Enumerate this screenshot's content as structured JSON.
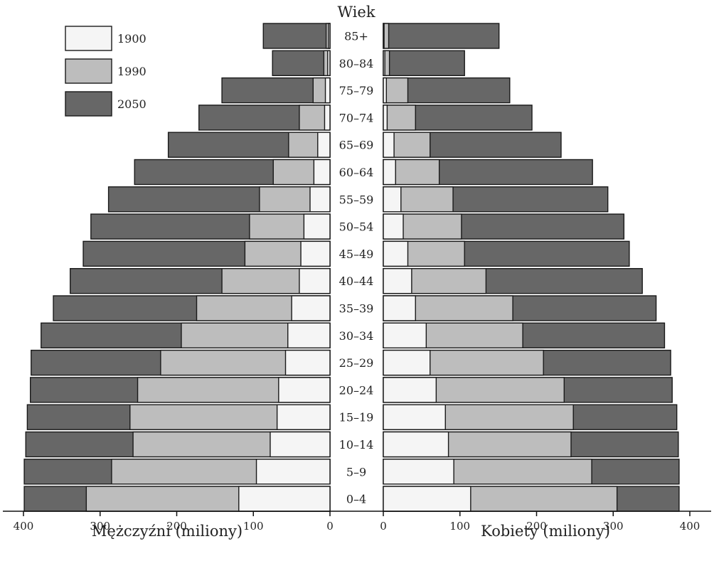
{
  "chart_data": {
    "type": "bar",
    "orientation": "horizontal-back-to-back",
    "center_label": "Wiek",
    "categories": [
      "85+",
      "80–84",
      "75–79",
      "70–74",
      "65–69",
      "60–64",
      "55–59",
      "50–54",
      "45–49",
      "40–44",
      "35–39",
      "30–34",
      "25–29",
      "20–24",
      "15–19",
      "10–14",
      "5–9",
      "0–4"
    ],
    "legend": [
      {
        "name": "1900",
        "color": "#f5f5f5"
      },
      {
        "name": "1990",
        "color": "#bdbdbd"
      },
      {
        "name": "2050",
        "color": "#676767"
      }
    ],
    "men": {
      "xlabel": "Mężczyźni (miliony)",
      "xlim": [
        0,
        400
      ],
      "ticks": [
        "400",
        "300",
        "200",
        "100",
        "0"
      ],
      "series": [
        {
          "name": "1900",
          "values": [
            2,
            3,
            6,
            7,
            16,
            21,
            26,
            34,
            38,
            40,
            50,
            55,
            58,
            67,
            69,
            78,
            96,
            119
          ]
        },
        {
          "name": "1990",
          "values": [
            5,
            8,
            22,
            40,
            54,
            74,
            92,
            105,
            111,
            141,
            174,
            194,
            221,
            251,
            261,
            257,
            285,
            318
          ]
        },
        {
          "name": "2050",
          "values": [
            87,
            75,
            141,
            171,
            211,
            255,
            289,
            312,
            322,
            339,
            361,
            377,
            390,
            391,
            395,
            397,
            399,
            399
          ]
        }
      ]
    },
    "women": {
      "xlabel": "Kobiety (miliony)",
      "xlim": [
        0,
        400
      ],
      "ticks": [
        "0",
        "100",
        "200",
        "300",
        "400"
      ],
      "series": [
        {
          "name": "1900",
          "values": [
            1,
            2,
            4,
            5,
            14,
            16,
            23,
            26,
            32,
            37,
            42,
            56,
            61,
            69,
            81,
            85,
            92,
            114
          ]
        },
        {
          "name": "1990",
          "values": [
            7,
            8,
            32,
            42,
            61,
            73,
            91,
            102,
            106,
            134,
            169,
            182,
            209,
            236,
            248,
            245,
            272,
            305
          ]
        },
        {
          "name": "2050",
          "values": [
            151,
            106,
            165,
            194,
            232,
            273,
            293,
            314,
            321,
            338,
            356,
            367,
            375,
            377,
            383,
            385,
            386,
            386
          ]
        }
      ]
    }
  }
}
